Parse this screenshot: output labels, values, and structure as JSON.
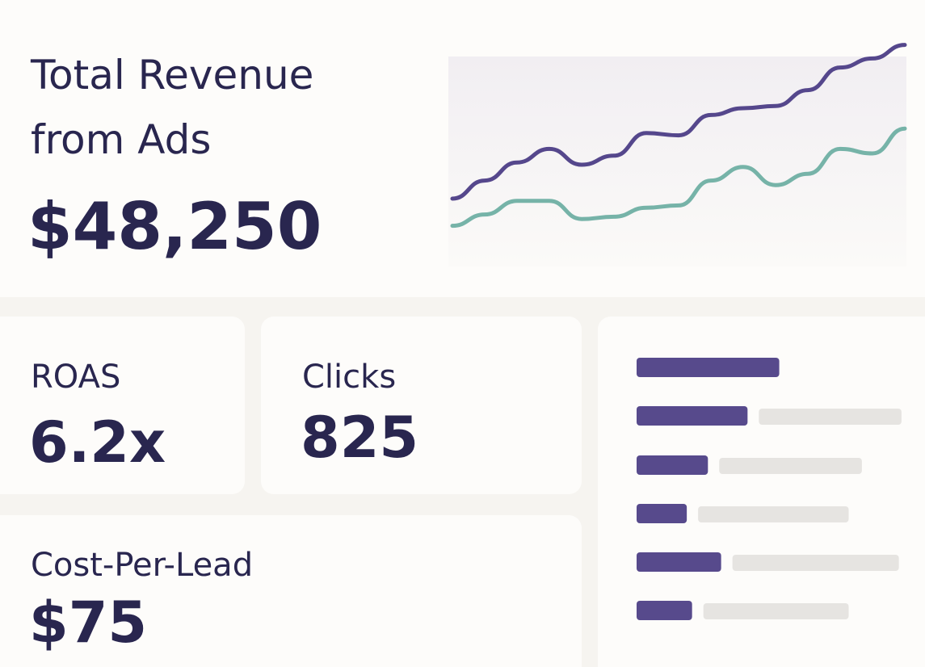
{
  "header": {
    "title_line1": "Total Revenue",
    "title_line2": "from Ads",
    "value": "$48,250"
  },
  "metrics": [
    {
      "label": "ROAS",
      "value": "6.2x"
    },
    {
      "label": "Clicks",
      "value": "825"
    },
    {
      "label": "Cost-Per-Lead",
      "value": "$75"
    }
  ],
  "line_chart": {
    "type": "line",
    "x": [
      0,
      1,
      2,
      3,
      4,
      5,
      6,
      7,
      8,
      9,
      10,
      11,
      12,
      13,
      14
    ],
    "xlim": [
      0,
      14
    ],
    "ylim": [
      0,
      100
    ],
    "series": [
      {
        "color": "#55478c",
        "values": [
          30,
          38,
          46,
          52,
          45,
          49,
          59,
          58,
          67,
          70,
          71,
          78,
          88,
          92,
          98
        ]
      },
      {
        "color": "#76b3a8",
        "values": [
          18,
          23,
          29,
          29,
          21,
          22,
          26,
          27,
          38,
          44,
          36,
          41,
          52,
          50,
          61
        ]
      }
    ]
  },
  "bar_chart": {
    "type": "bar",
    "xlim": [
      0,
      100
    ],
    "series": [
      {
        "color": "#574a8c",
        "values": [
          54,
          42,
          27,
          19,
          32,
          21
        ]
      },
      {
        "color": "#e6e4e1",
        "values": [
          null,
          54,
          54,
          57,
          63,
          55
        ]
      }
    ]
  }
}
